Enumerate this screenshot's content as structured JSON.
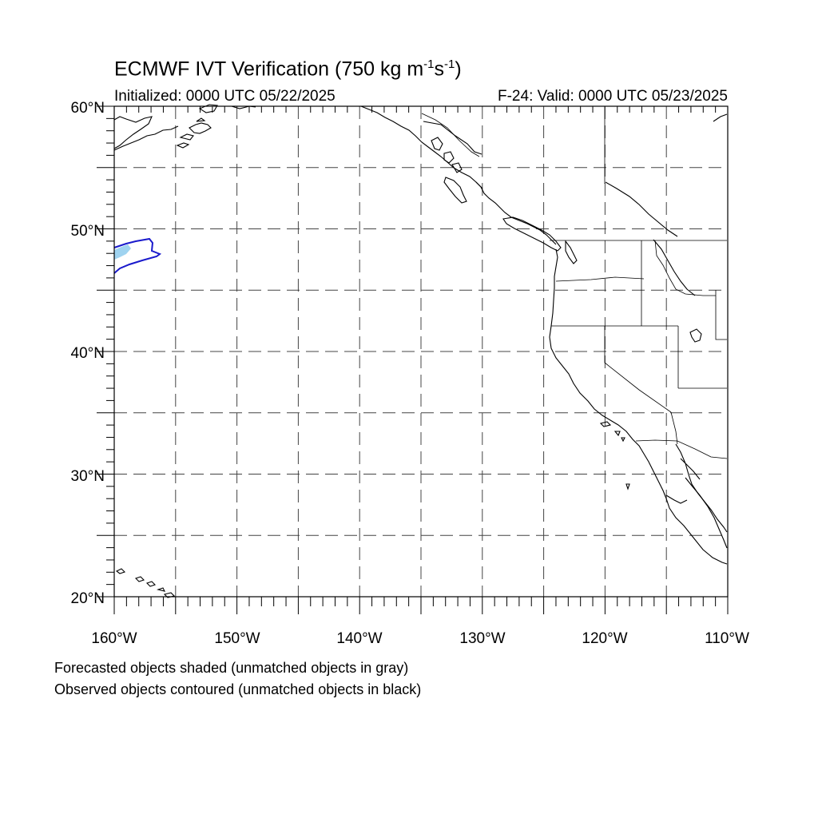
{
  "title": {
    "main": "ECMWF IVT Verification (750 kg m",
    "sup1": "-1",
    "mid": "s",
    "sup2": "-1",
    "close": ")"
  },
  "initialized": "Initialized: 0000 UTC 05/22/2025",
  "valid": "F-24: Valid: 0000 UTC 05/23/2025",
  "lat_labels": [
    "60°N",
    "50°N",
    "40°N",
    "30°N",
    "20°N"
  ],
  "lon_labels": [
    "160°W",
    "150°W",
    "140°W",
    "130°W",
    "120°W",
    "110°W"
  ],
  "caption": {
    "line1": "Forecasted objects shaded (unmatched objects in gray)",
    "line2": "Observed objects contoured (unmatched objects in black)"
  },
  "colors": {
    "forecast_fill": "#9fd3f0",
    "observed_contour": "#1a1acc",
    "grid": "#444444",
    "coastline": "#000000"
  },
  "map": {
    "lon_range": [
      -160,
      -110
    ],
    "lat_range": [
      20,
      60
    ],
    "projection": "cylindrical equidistant",
    "grid": "dashed every 5 degrees"
  }
}
